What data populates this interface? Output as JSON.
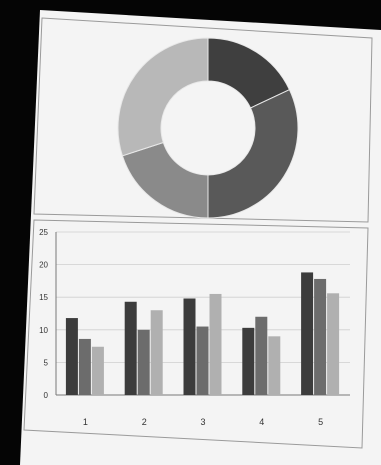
{
  "chart_data": [
    {
      "type": "pie",
      "variant": "donut",
      "title": "",
      "slices": [
        {
          "value": 18,
          "color": "#3f3f3f"
        },
        {
          "value": 32,
          "color": "#595959"
        },
        {
          "value": 20,
          "color": "#8a8a8a"
        },
        {
          "value": 30,
          "color": "#b8b8b8"
        }
      ]
    },
    {
      "type": "bar",
      "title": "",
      "xlabel": "",
      "ylabel": "",
      "categories": [
        "1",
        "2",
        "3",
        "4",
        "5"
      ],
      "series": [
        {
          "values": [
            11.8,
            14.3,
            14.8,
            10.3,
            18.8
          ],
          "color": "#3c3c3c"
        },
        {
          "values": [
            8.6,
            10.0,
            10.5,
            12.0,
            17.8
          ],
          "color": "#6c6c6c"
        },
        {
          "values": [
            7.4,
            13.0,
            15.5,
            9.0,
            15.6
          ],
          "color": "#b0b0b0"
        }
      ],
      "ylim": [
        0,
        25
      ],
      "yticks": [
        "0",
        "5",
        "10",
        "15",
        "20",
        "25"
      ],
      "grid": true,
      "legend": "none"
    }
  ]
}
